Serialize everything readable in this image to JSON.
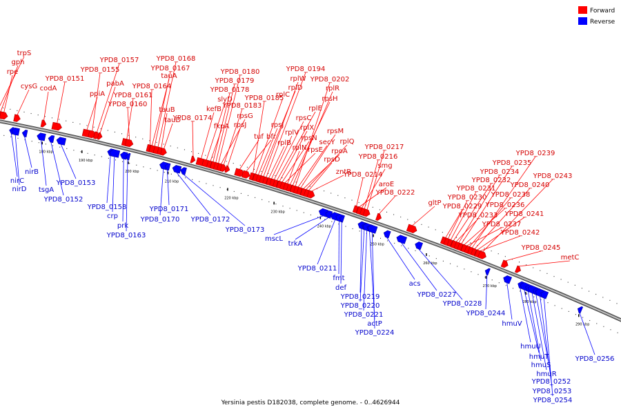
{
  "caption": "Yersinia pestis D182038, complete genome. - 0..4626944",
  "legend": {
    "forward": {
      "label": "Forward",
      "color": "#ff0000"
    },
    "reverse": {
      "label": "Reverse",
      "color": "#0000ff"
    }
  },
  "backbone_color": "#888888",
  "ticks": [
    "180 kbp",
    "190 kbp",
    "200 kbp",
    "210 kbp",
    "220 kbp",
    "230 kbp",
    "240 kbp",
    "250 kbp",
    "260 kbp",
    "270 kbp",
    "280 kbp",
    "290 kbp"
  ],
  "forward_genes": [
    "trpS",
    "gph",
    "rpe",
    "cysG",
    "codA",
    "YPD8_0151",
    "ppiA",
    "YPD8_0155",
    "YPD8_0157",
    "pabA",
    "YPD8_0161",
    "YPD8_0160",
    "YPD8_0164",
    "tauA",
    "YPD8_0167",
    "YPD8_0168",
    "tauB",
    "tauD",
    "YPD8_0174",
    "kefB",
    "slyD",
    "fkpA",
    "YPD8_0178",
    "YPD8_0179",
    "YPD8_0180",
    "rpsG",
    "YPD8_0183",
    "rpsJ",
    "tuf",
    "bfr",
    "YPD8_0185",
    "rplC",
    "rpsJ",
    "rplD",
    "rplW",
    "YPD8_0194",
    "rplB",
    "rplV",
    "rpsC",
    "rplE",
    "rplX",
    "rpsN",
    "rpsE",
    "rplN",
    "rpsH",
    "rplR",
    "YPD8_0202",
    "secY",
    "rpsM",
    "rpoA",
    "rplQ",
    "rpsD",
    "zntR",
    "YPD8_0214",
    "aroE",
    "smg",
    "YPD8_0216",
    "YPD8_0217",
    "YPD8_0222",
    "gltP",
    "YPD8_0229",
    "YPD8_0230",
    "YPD8_0231",
    "YPD8_0232",
    "YPD8_0233",
    "YPD8_0234",
    "YPD8_0235",
    "YPD8_0236",
    "YPD8_0237",
    "YPD8_0238",
    "YPD8_0239",
    "YPD8_0240",
    "YPD8_0241",
    "YPD8_0242",
    "YPD8_0243",
    "YPD8_0245",
    "metC"
  ],
  "reverse_genes": [
    "nirC",
    "nirD",
    "nirB",
    "tsgA",
    "YPD8_0152",
    "YPD8_0153",
    "YPD8_0158",
    "crp",
    "prk",
    "YPD8_0163",
    "YPD8_0170",
    "YPD8_0171",
    "YPD8_0172",
    "YPD8_0173",
    "mscL",
    "trkA",
    "YPD8_0211",
    "fmt",
    "def",
    "YPD8_0219",
    "YPD8_0220",
    "YPD8_0221",
    "actP",
    "YPD8_0224",
    "acs",
    "YPD8_0227",
    "YPD8_0228",
    "YPD8_0244",
    "hmuV",
    "hmuU",
    "hmuT",
    "hmuS",
    "hmuR",
    "YPD8_0252",
    "YPD8_0253",
    "YPD8_0254",
    "YPD8_0256"
  ]
}
